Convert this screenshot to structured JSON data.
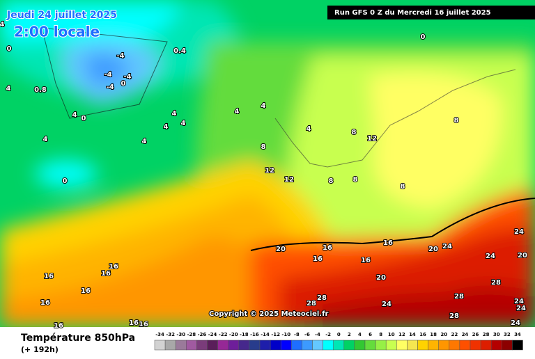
{
  "header": {
    "date": "Jeudi 24 juillet 2025",
    "time": "2:00 locale",
    "run": "Run GFS 0 Z du Mercredi 16 juillet 2025"
  },
  "copyright": "Copyright © 2025 Meteociel.fr",
  "footer": {
    "title": "Température 850hPa",
    "lead": "(+ 192h)"
  },
  "legend": {
    "values": [
      -34,
      -32,
      -30,
      -28,
      -26,
      -24,
      -22,
      -20,
      -18,
      -16,
      -14,
      -12,
      -10,
      -8,
      -6,
      -4,
      -2,
      0,
      2,
      4,
      6,
      8,
      10,
      12,
      14,
      16,
      18,
      20,
      22,
      24,
      26,
      28,
      30,
      32,
      34
    ],
    "colors": [
      "#d2d2d2",
      "#a8a8a8",
      "#9a7a9a",
      "#a05aa0",
      "#7a3c7a",
      "#5a1e5a",
      "#962896",
      "#6e1e9a",
      "#46288c",
      "#283c8c",
      "#1e1eaa",
      "#0000c8",
      "#0000ff",
      "#1e6eff",
      "#3c9aff",
      "#64c8ff",
      "#00ffff",
      "#00e6b4",
      "#00d264",
      "#32c832",
      "#64dc3c",
      "#96f046",
      "#c8ff50",
      "#ffff64",
      "#f5e650",
      "#ffd200",
      "#ffb400",
      "#ff9600",
      "#ff7800",
      "#ff5000",
      "#f03200",
      "#dc1e00",
      "#b40000",
      "#8c0000",
      "#000000"
    ]
  },
  "contour_labels": [
    "4",
    "0",
    "-4",
    "0.4",
    "-4",
    "-4",
    "0",
    "-4",
    "4",
    "0.8",
    "4",
    "0",
    "4",
    "4",
    "4",
    "4",
    "4",
    "4",
    "4",
    "4",
    "8",
    "8",
    "12",
    "8",
    "0",
    "12",
    "12",
    "8",
    "8",
    "8",
    "20",
    "16",
    "16",
    "16",
    "16",
    "20",
    "24",
    "24",
    "24",
    "20",
    "20",
    "28",
    "28",
    "28",
    "28",
    "24",
    "24",
    "24",
    "28",
    "24",
    "16",
    "16",
    "16",
    "16",
    "16",
    "16",
    "16",
    "16",
    "0"
  ]
}
